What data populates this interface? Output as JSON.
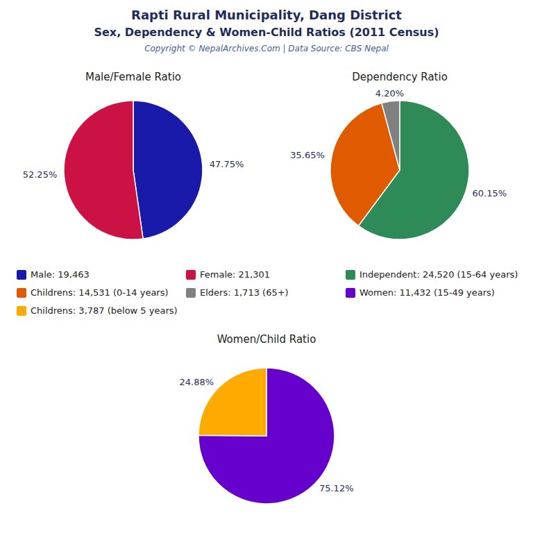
{
  "title": "Rapti Rural Municipality, Dang District",
  "subtitle": "Sex, Dependency & Women-Child Ratios (2011 Census)",
  "annotations": [
    "Copyright © NepalArchives.Com | Data Source: CBS Nepal"
  ],
  "chart_data": [
    {
      "type": "pie",
      "title": "Male/Female Ratio",
      "categories": [
        "Male: 19,463",
        "Female: 21,301"
      ],
      "values": [
        47.75,
        52.25
      ],
      "value_labels": [
        "47.75%",
        "52.25%"
      ],
      "colors": [
        "#1a1aaa",
        "#cc1144"
      ],
      "data_labels": true,
      "legend": "bottom"
    },
    {
      "type": "pie",
      "title": "Dependency Ratio",
      "categories": [
        "Independent: 24,520 (15-64 years)",
        "Childrens: 14,531 (0-14 years)",
        "Elders: 1,713 (65+)"
      ],
      "values": [
        60.15,
        35.65,
        4.2
      ],
      "value_labels": [
        "60.15%",
        "35.65%",
        "4.20%"
      ],
      "colors": [
        "#2e8b57",
        "#e05a00",
        "#808080"
      ],
      "data_labels": true,
      "legend": "bottom"
    },
    {
      "type": "pie",
      "title": "Women/Child Ratio",
      "categories": [
        "Women: 11,432 (15-49 years)",
        "Childrens: 3,787 (below 5 years)"
      ],
      "values": [
        75.12,
        24.88
      ],
      "value_labels": [
        "75.12%",
        "24.88%"
      ],
      "colors": [
        "#6600cc",
        "#ffaa00"
      ],
      "data_labels": true,
      "legend": "top"
    }
  ]
}
